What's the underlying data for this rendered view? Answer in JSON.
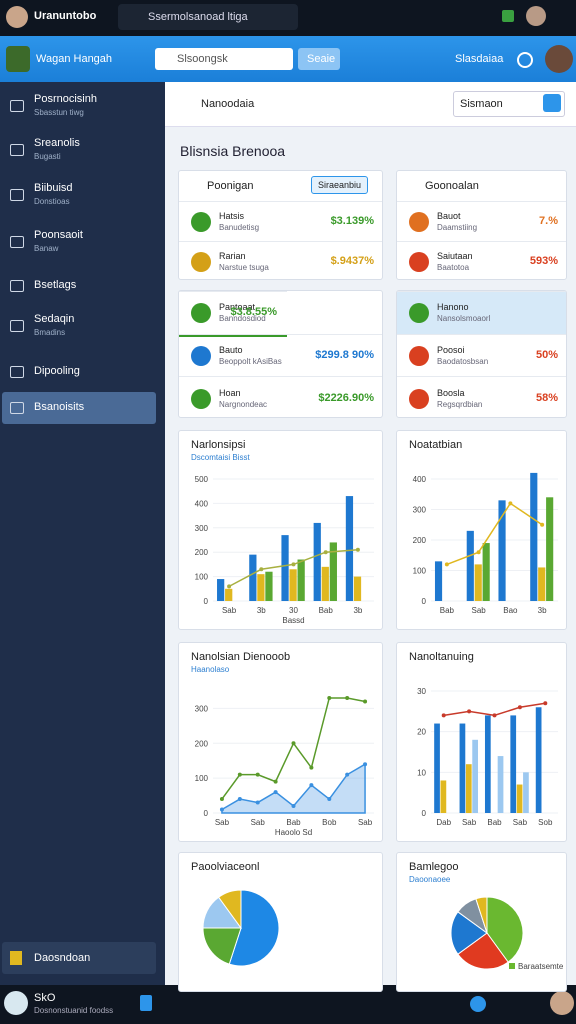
{
  "system_bar": {
    "app_name": "Uranuntobo",
    "tab_title": "Ssermolsanoad ltiga"
  },
  "header": {
    "brand": "Wagan Hangah",
    "search_placeholder": "Slsoongsk",
    "search_button": "Seaie",
    "user_menu": "Slasdaiaa"
  },
  "sidebar": {
    "items": [
      {
        "label": "Posrnocisinh",
        "sub": "Sbasstun tiwg"
      },
      {
        "label": "Sreanolis",
        "sub": "Bugasti"
      },
      {
        "label": "Biibuisd",
        "sub": "Donstioas"
      },
      {
        "label": "Poonsaoit",
        "sub": "Banaw"
      },
      {
        "label": "Bsetlags"
      },
      {
        "label": "Sedaqin",
        "sub": "Bmadins"
      },
      {
        "label": "Dipooling"
      },
      {
        "label": "Bsanoisits"
      }
    ],
    "footer": "Daosndoan"
  },
  "toolbar": {
    "title": "Nanoodaia",
    "dropdown": "Sismaon"
  },
  "page_title": "Blisnsia Brenooa",
  "cards": [
    {
      "title": "Poonigan",
      "button": "Siraeanbiu",
      "rows": [
        {
          "name": "Hatsis",
          "sub": "Banudetisg",
          "value": "$3.139%",
          "color": "#3a9a2a"
        },
        {
          "name": "Rarian",
          "sub": "Narstue tsuga",
          "value": "$.9437%",
          "color": "#d4a017"
        }
      ]
    },
    {
      "title": "Goonoalan",
      "rows": [
        {
          "name": "Bauot",
          "sub": "Daamstiing",
          "value": "7.%",
          "color": "#e07020"
        },
        {
          "name": "Saiutaan",
          "sub": "Baatotoa",
          "value": "593%",
          "color": "#d94020"
        }
      ]
    },
    {
      "rows": [
        {
          "name": "Pantoaat",
          "sub": "Banndosdiod",
          "value": "$3.8.55%",
          "color": "#3a9a2a"
        },
        {
          "name": "Bauto",
          "sub": "Beoppolt kAsiBas",
          "value": "$299.8 90%",
          "color": "#1e78d0"
        },
        {
          "name": "Hoan",
          "sub": "Nargnondeac",
          "value": "$2226.90%",
          "color": "#3a9a2a"
        }
      ]
    },
    {
      "rows": [
        {
          "name": "Hanono",
          "sub": "Nansolsmoaorl",
          "value": "",
          "color": "#3a9a2a"
        },
        {
          "name": "Poosoi",
          "sub": "Baodatosbsan",
          "value": "50%",
          "color": "#d94020"
        },
        {
          "name": "Boosla",
          "sub": "Regsqrdbian",
          "value": "58%",
          "color": "#d94020"
        }
      ]
    }
  ],
  "charts": [
    {
      "type": "bar",
      "title": "Narlonsipsi",
      "subtitle": "Dscomtaisi Bisst",
      "x_label": "Bassd",
      "categories": [
        "Sab",
        "3b",
        "30",
        "Bab",
        "3b"
      ],
      "ylim": [
        0,
        500
      ],
      "yticks": [
        0,
        100,
        200,
        300,
        400,
        500
      ],
      "series": [
        {
          "kind": "bar",
          "color": "#1e78d0",
          "values": [
            90,
            190,
            270,
            320,
            430
          ]
        },
        {
          "kind": "bar",
          "color": "#e0b820",
          "values": [
            50,
            110,
            130,
            140,
            100
          ]
        },
        {
          "kind": "bar",
          "color": "#5aa832",
          "values": [
            0,
            120,
            170,
            240,
            0
          ]
        },
        {
          "kind": "line",
          "color": "#a8b040",
          "values": [
            60,
            130,
            150,
            200,
            210
          ]
        }
      ]
    },
    {
      "type": "bar",
      "title": "Noatatbian",
      "categories": [
        "Bab",
        "Sab",
        "Bao",
        "3b"
      ],
      "ylim": [
        0,
        400
      ],
      "yticks": [
        0,
        100,
        200,
        300,
        400
      ],
      "series": [
        {
          "kind": "bar",
          "color": "#1e78d0",
          "values": [
            130,
            230,
            330,
            420
          ]
        },
        {
          "kind": "bar",
          "color": "#e0b820",
          "values": [
            0,
            120,
            0,
            110
          ]
        },
        {
          "kind": "bar",
          "color": "#5aa832",
          "values": [
            0,
            190,
            0,
            340
          ]
        },
        {
          "kind": "line",
          "color": "#e0b820",
          "values": [
            120,
            160,
            320,
            250
          ]
        }
      ]
    },
    {
      "type": "line",
      "title": "Nanolsian Dienooob",
      "subtitle": "Haanolaso",
      "x_label": "Haoolo Sd",
      "categories": [
        "Sab",
        null,
        "Sab",
        null,
        "Bab",
        null,
        "Bob",
        null,
        "Sab"
      ],
      "ylim": [
        0,
        350
      ],
      "yticks": [
        0,
        100,
        200,
        300
      ],
      "series": [
        {
          "kind": "line",
          "color": "#5a9a2a",
          "values": [
            40,
            110,
            110,
            90,
            200,
            130,
            330,
            330,
            320
          ]
        },
        {
          "kind": "area",
          "color": "#3a90e0",
          "values": [
            10,
            40,
            30,
            60,
            20,
            80,
            40,
            110,
            140
          ]
        }
      ]
    },
    {
      "type": "bar",
      "title": "Nanoltanuing",
      "categories": [
        "Dab",
        "Sab",
        "Bab",
        "Sab",
        "Sob"
      ],
      "ylim": [
        0,
        30
      ],
      "yticks": [
        0,
        10,
        20,
        30
      ],
      "series": [
        {
          "kind": "bar",
          "color": "#1e78d0",
          "values": [
            22,
            22,
            24,
            24,
            26
          ]
        },
        {
          "kind": "bar",
          "color": "#e0b820",
          "values": [
            8,
            12,
            0,
            7,
            0
          ]
        },
        {
          "kind": "bar",
          "color": "#9cc8f0",
          "values": [
            0,
            18,
            14,
            10,
            0
          ]
        },
        {
          "kind": "line",
          "color": "#c83a2a",
          "values": [
            24,
            25,
            24,
            26,
            27
          ]
        }
      ]
    },
    {
      "type": "pie",
      "title": "Paoolviaceonl",
      "values": [
        55,
        20,
        15,
        10
      ],
      "colors": [
        "#1e88e5",
        "#5aa832",
        "#9cc8f0",
        "#e0b820"
      ]
    },
    {
      "type": "pie",
      "title": "Bamlegoo",
      "subtitle": "Daoonaoee",
      "legend": "Baraatsemte",
      "values": [
        40,
        25,
        20,
        10,
        5
      ],
      "colors": [
        "#6ab830",
        "#e03a20",
        "#1e78d0",
        "#8090a0",
        "#e0b820"
      ]
    }
  ],
  "bottom_bar": {
    "name": "SkO",
    "sub": "Dosnonstuanid foodss"
  }
}
